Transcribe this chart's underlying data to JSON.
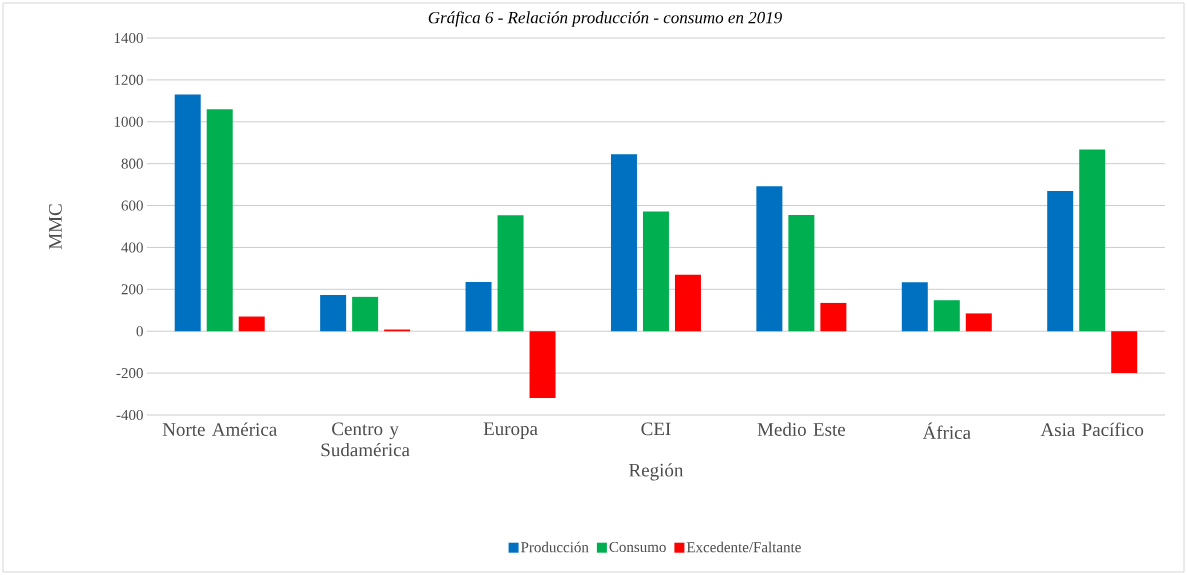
{
  "chart_data": {
    "type": "bar",
    "title": "Gráfica 6 - Relación producción - consumo en 2019",
    "xlabel": "Región",
    "ylabel": "MMC",
    "categories": [
      "Norte América",
      "Centro y Sudamérica",
      "Europa",
      "CEI",
      "Medio Este",
      "África",
      "Asia Pacífico"
    ],
    "series": [
      {
        "name": "Producción",
        "color": "#0070c0",
        "values": [
          1130,
          173,
          235,
          845,
          692,
          234,
          670
        ]
      },
      {
        "name": "Consumo",
        "color": "#00b050",
        "values": [
          1060,
          164,
          554,
          571,
          555,
          148,
          868
        ]
      },
      {
        "name": "Excedente/Faltante",
        "color": "#ff0000",
        "values": [
          70,
          8,
          -319,
          270,
          135,
          85,
          -200
        ]
      }
    ],
    "ylim": [
      -400,
      1400
    ],
    "yticks": [
      -400,
      -200,
      0,
      200,
      400,
      600,
      800,
      1000,
      1200,
      1400
    ],
    "grid": "y",
    "legend": "bottom"
  }
}
